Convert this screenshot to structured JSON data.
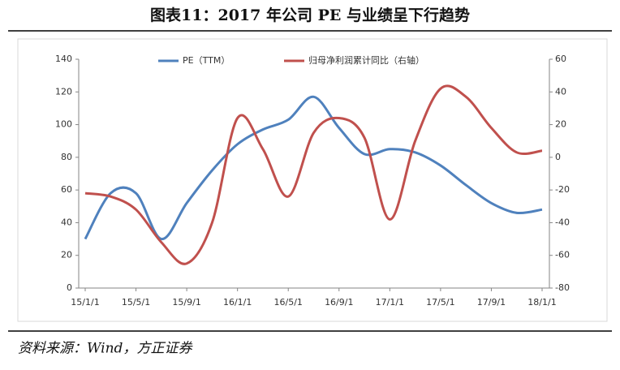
{
  "chart_data": {
    "type": "line",
    "title": "图表11：2017 年公司 PE 与业绩呈下行趋势",
    "source": "资料来源：Wind，方正证券",
    "categories": [
      "15/1/1",
      null,
      "15/5/1",
      null,
      "15/9/1",
      null,
      "16/1/1",
      null,
      "16/5/1",
      null,
      "16/9/1",
      null,
      "17/1/1",
      null,
      "17/5/1",
      null,
      "17/9/1",
      null,
      "18/1/1"
    ],
    "ylim": [
      0,
      140
    ],
    "yticks": [
      0,
      20,
      40,
      60,
      80,
      100,
      120,
      140
    ],
    "y2lim": [
      -80,
      60
    ],
    "y2ticks": [
      -80,
      -60,
      -40,
      -20,
      0,
      20,
      40,
      60
    ],
    "series": [
      {
        "name": "PE（TTM）",
        "color": "#4f81bd",
        "values": [
          30,
          58,
          58,
          30,
          52,
          72,
          88,
          97,
          103,
          117,
          98,
          82,
          85,
          83,
          75,
          63,
          52,
          46,
          48
        ]
      },
      {
        "name": "归母净利润累计同比（右轴）",
        "color": "#c0504d",
        "axis": "y2",
        "values": [
          -22,
          -24,
          -32,
          -52,
          -65,
          -40,
          24,
          5,
          -24,
          15,
          24,
          12,
          -38,
          10,
          42,
          37,
          18,
          3,
          4
        ]
      }
    ]
  }
}
